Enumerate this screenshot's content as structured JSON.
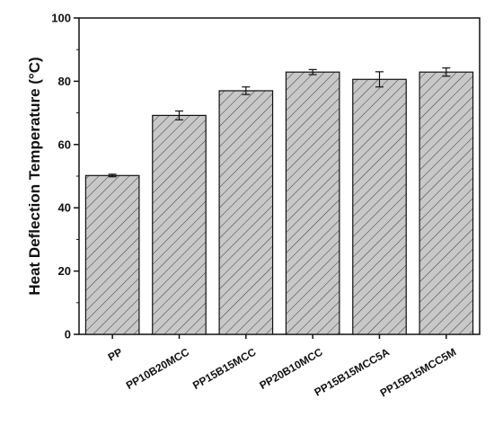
{
  "chart_data": {
    "type": "bar",
    "ylabel": "Heat Deflection Temperature (°C)",
    "xlabel": "",
    "categories": [
      "PP",
      "PP10B20MCC",
      "PP15B15MCC",
      "PP20B10MCC",
      "PP15B15MCC5A",
      "PP15B15MCC5M"
    ],
    "values": [
      50.2,
      69.2,
      77.0,
      82.9,
      80.6,
      82.9
    ],
    "errors": [
      0.4,
      1.4,
      1.2,
      0.8,
      2.4,
      1.3
    ],
    "ylim": [
      0,
      100
    ],
    "yticks": [
      "0",
      "20",
      "40",
      "60",
      "80",
      "100"
    ],
    "grid": false,
    "legend": "none",
    "bar_color": "#c8c8c8",
    "hatch": "diagonal",
    "edge_color": "#111111"
  }
}
